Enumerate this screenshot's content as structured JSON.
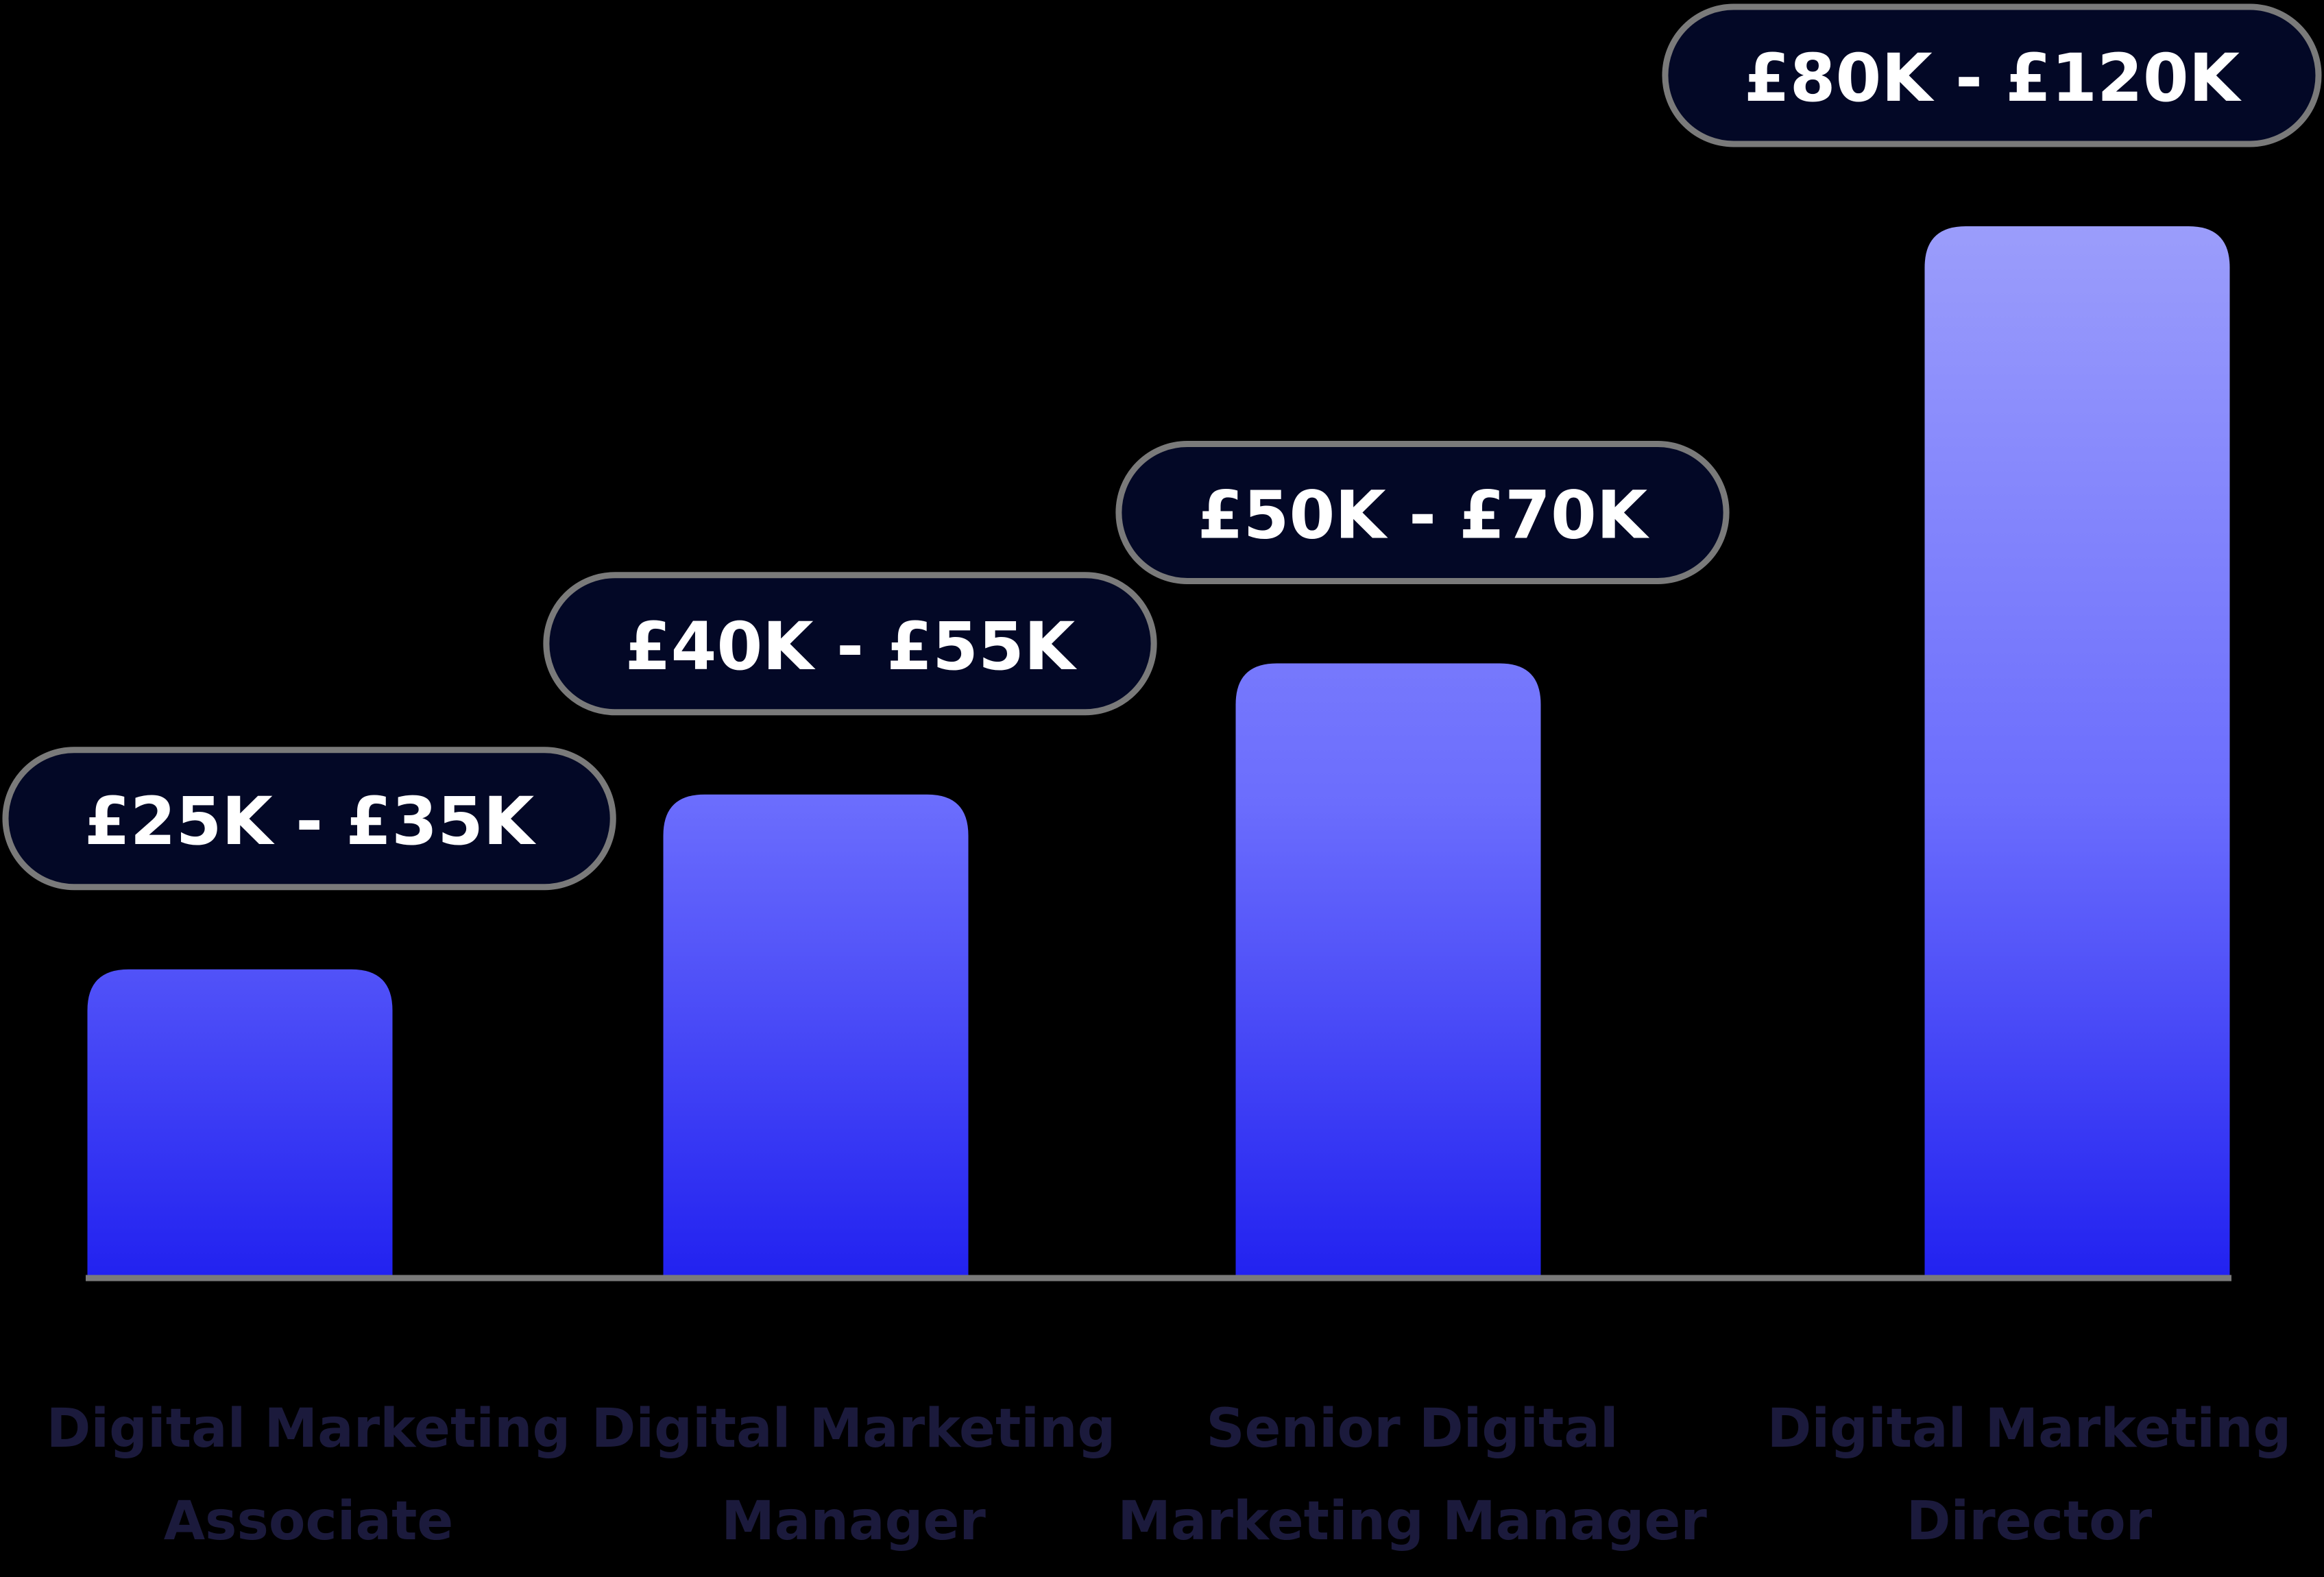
{
  "chart_data": {
    "type": "bar",
    "categories": [
      [
        "Digital Marketing",
        "Associate"
      ],
      [
        "Digital Marketing",
        "Manager"
      ],
      [
        "Senior Digital",
        "Marketing Manager"
      ],
      [
        "Digital Marketing",
        "Director"
      ]
    ],
    "ranges": [
      [
        25,
        35
      ],
      [
        40,
        55
      ],
      [
        50,
        70
      ],
      [
        80,
        120
      ]
    ],
    "data_labels": [
      "£25K - £35K",
      "£40K - £55K",
      "£50K - £70K",
      "£80K - £120K"
    ],
    "unit": "£K",
    "title": "",
    "xlabel": "",
    "ylabel": "",
    "grid": false,
    "colors": {
      "background": "#000000",
      "bar_top": "#9b9dfb",
      "bar_mid": "#6b6dfd",
      "bar_bottom": "#2222f0",
      "pill_fill": "#030826",
      "pill_border": "#7a7a7a",
      "baseline": "#7a7a7a",
      "label_text": "#1b1a3c",
      "pill_text": "#ffffff"
    }
  }
}
